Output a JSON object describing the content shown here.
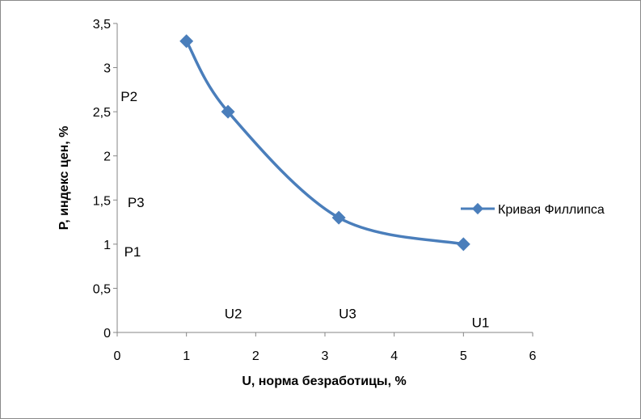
{
  "chart_data": {
    "type": "line",
    "title": "",
    "xlabel": "U, норма безработицы, %",
    "ylabel": "P, индекс цен, %",
    "xlim": [
      0,
      6
    ],
    "ylim": [
      0,
      3.5
    ],
    "xticks": [
      "0",
      "1",
      "2",
      "3",
      "4",
      "5",
      "6"
    ],
    "yticks": [
      "0",
      "0,5",
      "1",
      "1,5",
      "2",
      "2,5",
      "3",
      "3,5"
    ],
    "grid": false,
    "legend_position": "right",
    "series": [
      {
        "name": "Кривая Филлипса",
        "color": "#4a7ebb",
        "marker": "diamond",
        "smooth": true,
        "x": [
          1,
          1.6,
          3.2,
          5
        ],
        "y": [
          3.3,
          2.5,
          1.3,
          1.0
        ]
      }
    ],
    "annotations": [
      {
        "text": "P2",
        "x": 0.05,
        "y": 2.62
      },
      {
        "text": "P3",
        "x": 0.15,
        "y": 1.42
      },
      {
        "text": "P1",
        "x": 0.1,
        "y": 0.86
      },
      {
        "text": "U2",
        "x": 1.55,
        "y": 0.16
      },
      {
        "text": "U3",
        "x": 3.2,
        "y": 0.16
      },
      {
        "text": "U1",
        "x": 5.12,
        "y": 0.06
      }
    ]
  }
}
